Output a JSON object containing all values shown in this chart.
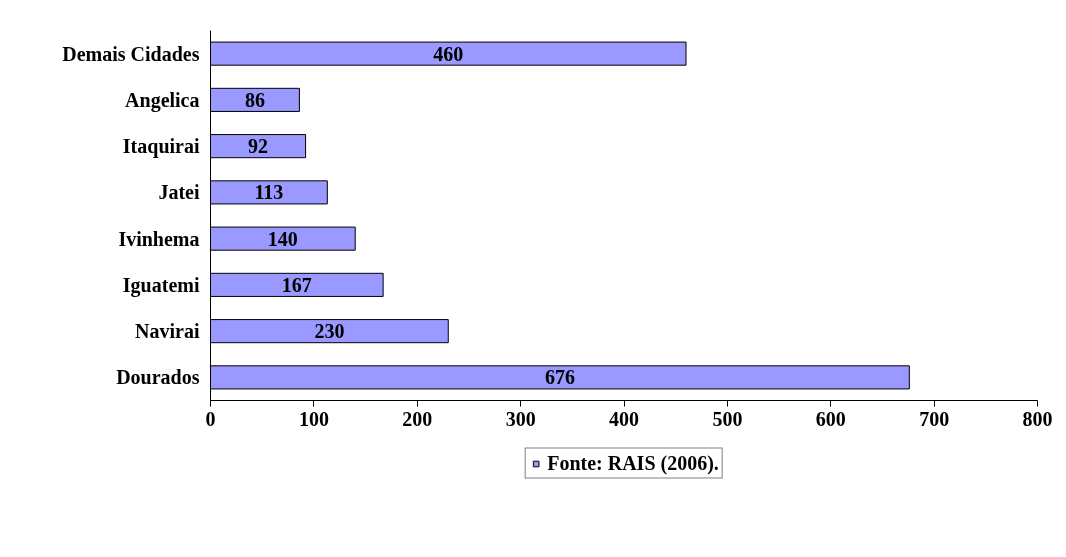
{
  "chart_data": {
    "type": "bar",
    "orientation": "horizontal",
    "categories": [
      "Demais Cidades",
      "Angelica",
      "Itaquirai",
      "Jatei",
      "Ivinhema",
      "Iguatemi",
      "Navirai",
      "Dourados"
    ],
    "series": [
      {
        "name": "Fonte: RAIS (2006).",
        "color": "#9999ff",
        "values": [
          460,
          86,
          92,
          113,
          140,
          167,
          230,
          676
        ]
      }
    ],
    "xlim": [
      0,
      800
    ],
    "xticks": [
      0,
      100,
      200,
      300,
      400,
      500,
      600,
      700,
      800
    ],
    "data_labels": true,
    "grid": false,
    "legend": "bottom"
  }
}
